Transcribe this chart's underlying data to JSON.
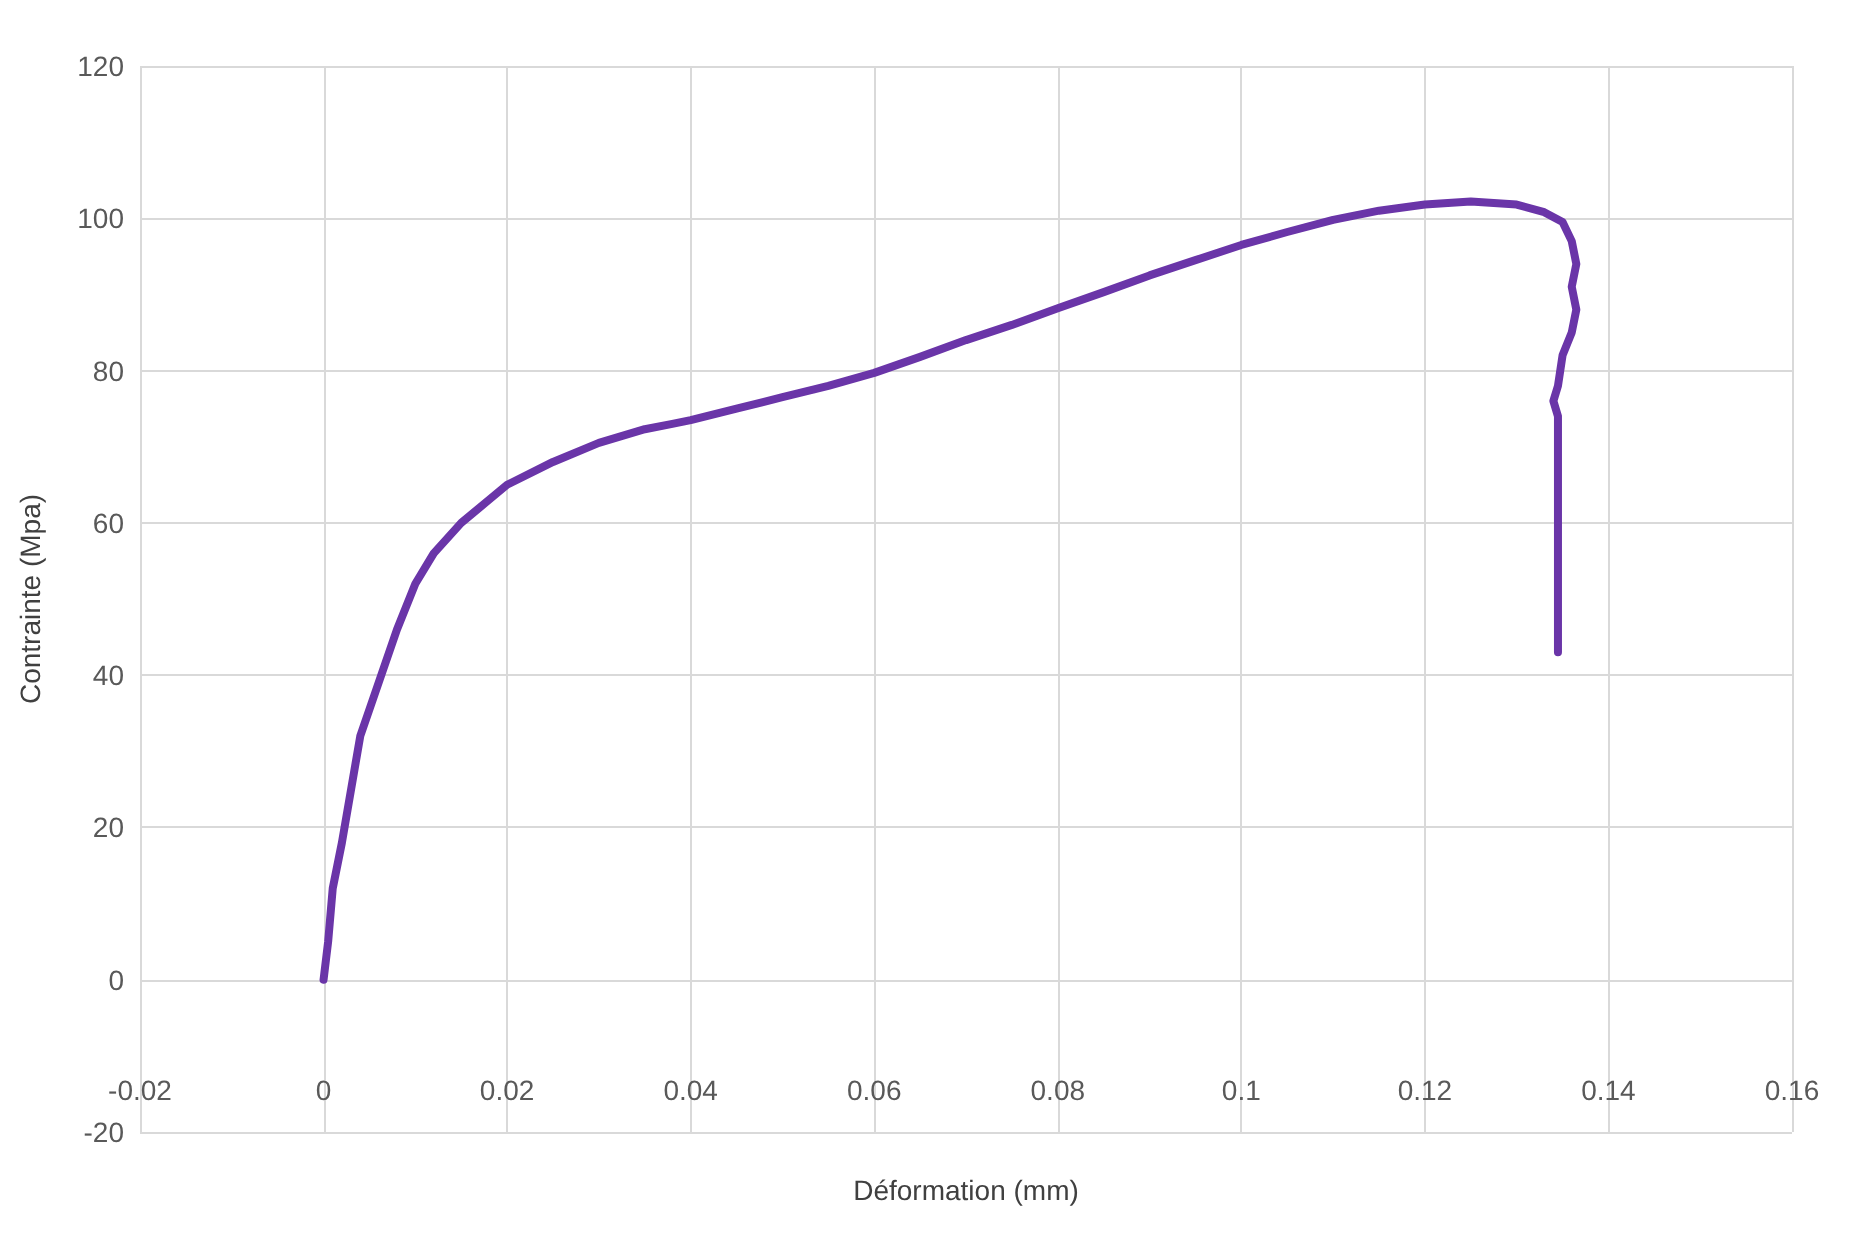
{
  "chart_data": {
    "type": "line",
    "xlabel": "Déformation (mm)",
    "ylabel": "Contrainte (Mpa)",
    "xlim": [
      -0.02,
      0.16
    ],
    "xticks": [
      -0.02,
      0,
      0.02,
      0.04,
      0.06,
      0.08,
      0.1,
      0.12,
      0.14,
      0.16
    ],
    "ylim": [
      -20,
      120
    ],
    "yticks": [
      -20,
      0,
      20,
      40,
      60,
      80,
      100,
      120
    ],
    "grid": true,
    "marker": "none",
    "line_style": "solid",
    "series": [
      {
        "color": "#6a35a8",
        "x": [
          0,
          0.0005,
          0.001,
          0.002,
          0.003,
          0.004,
          0.006,
          0.008,
          0.01,
          0.012,
          0.015,
          0.018,
          0.02,
          0.025,
          0.03,
          0.035,
          0.038,
          0.04,
          0.045,
          0.05,
          0.055,
          0.06,
          0.065,
          0.07,
          0.075,
          0.08,
          0.085,
          0.09,
          0.095,
          0.1,
          0.105,
          0.11,
          0.115,
          0.12,
          0.125,
          0.13,
          0.133,
          0.135,
          0.136,
          0.1365,
          0.136,
          0.1365,
          0.136,
          0.135,
          0.1345,
          0.134,
          0.1345,
          0.1345,
          0.1345
        ],
        "values": [
          0,
          5,
          12,
          18,
          25,
          32,
          39,
          46,
          52,
          56,
          60,
          63,
          65,
          68,
          70.5,
          72.3,
          73,
          73.5,
          75,
          76.5,
          78,
          79.7,
          81.8,
          84,
          86,
          88.2,
          90.3,
          92.5,
          94.5,
          96.5,
          98.2,
          99.8,
          101,
          101.8,
          102.2,
          101.8,
          100.8,
          99.5,
          97,
          94,
          91,
          88,
          85,
          82,
          78,
          76,
          74,
          60,
          43
        ]
      }
    ]
  }
}
